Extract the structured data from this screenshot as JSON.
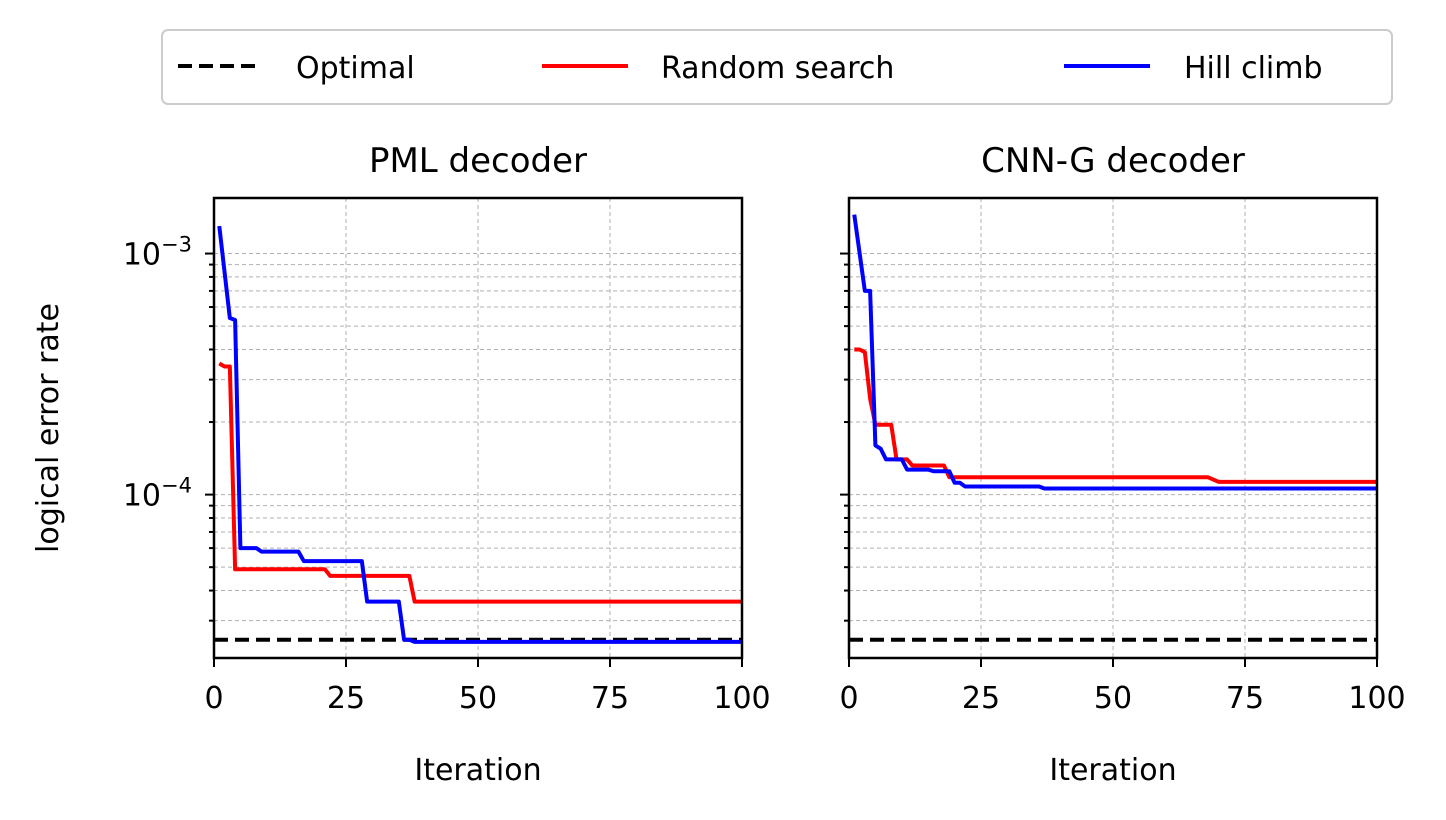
{
  "legend": {
    "entries": [
      {
        "label": "Optimal",
        "color": "#000000",
        "style": "dashed"
      },
      {
        "label": "Random search",
        "color": "#ff0000",
        "style": "solid"
      },
      {
        "label": "Hill climb",
        "color": "#0000ff",
        "style": "solid"
      }
    ],
    "placement": "top-center"
  },
  "chart_data": [
    {
      "type": "line",
      "title": "PML decoder",
      "xlabel": "Iteration",
      "ylabel": "logical error rate",
      "xlim": [
        0,
        100
      ],
      "ylim": [
        2.1e-05,
        0.0017
      ],
      "yscale": "log",
      "grid": true,
      "x_ticks": [
        "0",
        "25",
        "50",
        "75",
        "100"
      ],
      "y_ticks": [
        {
          "base": "10",
          "exp": "−3",
          "value": 0.001
        },
        {
          "base": "10",
          "exp": "−4",
          "value": 0.0001
        }
      ],
      "series": [
        {
          "name": "Optimal",
          "x": [
            0,
            100
          ],
          "y": [
            2.5e-05,
            2.5e-05
          ]
        },
        {
          "name": "Random search",
          "x": [
            1,
            2,
            3,
            4,
            21,
            22,
            37,
            38,
            100
          ],
          "y": [
            0.00035,
            0.00034,
            0.00034,
            4.9e-05,
            4.9e-05,
            4.6e-05,
            4.6e-05,
            3.6e-05,
            3.6e-05
          ]
        },
        {
          "name": "Hill climb",
          "x": [
            1,
            3,
            4,
            5,
            8,
            9,
            16,
            17,
            28,
            29,
            35,
            36,
            37,
            38,
            100
          ],
          "y": [
            0.0013,
            0.00054,
            0.00053,
            6e-05,
            6e-05,
            5.8e-05,
            5.8e-05,
            5.3e-05,
            5.3e-05,
            3.6e-05,
            3.6e-05,
            2.5e-05,
            2.5e-05,
            2.45e-05,
            2.45e-05
          ]
        }
      ]
    },
    {
      "type": "line",
      "title": "CNN-G decoder",
      "xlabel": "Iteration",
      "ylabel": "",
      "xlim": [
        0,
        100
      ],
      "ylim": [
        2.1e-05,
        0.0017
      ],
      "yscale": "log",
      "grid": true,
      "x_ticks": [
        "0",
        "25",
        "50",
        "75",
        "100"
      ],
      "y_ticks": [],
      "series": [
        {
          "name": "Optimal",
          "x": [
            0,
            100
          ],
          "y": [
            2.5e-05,
            2.5e-05
          ]
        },
        {
          "name": "Random search",
          "x": [
            1,
            2,
            3,
            4,
            5,
            8,
            9,
            11,
            12,
            18,
            19,
            68,
            70,
            100
          ],
          "y": [
            0.0004,
            0.0004,
            0.00039,
            0.00025,
            0.000195,
            0.000195,
            0.00014,
            0.00014,
            0.000132,
            0.000132,
            0.000118,
            0.000118,
            0.000113,
            0.000113
          ]
        },
        {
          "name": "Hill climb",
          "x": [
            1,
            3,
            4,
            5,
            6,
            7,
            10,
            11,
            15,
            16,
            19,
            20,
            21,
            22,
            36,
            37,
            100
          ],
          "y": [
            0.00145,
            0.0007,
            0.0007,
            0.00016,
            0.000155,
            0.00014,
            0.00014,
            0.000127,
            0.000127,
            0.000125,
            0.000125,
            0.000112,
            0.000112,
            0.000108,
            0.000108,
            0.000106,
            0.000106
          ]
        }
      ]
    }
  ]
}
